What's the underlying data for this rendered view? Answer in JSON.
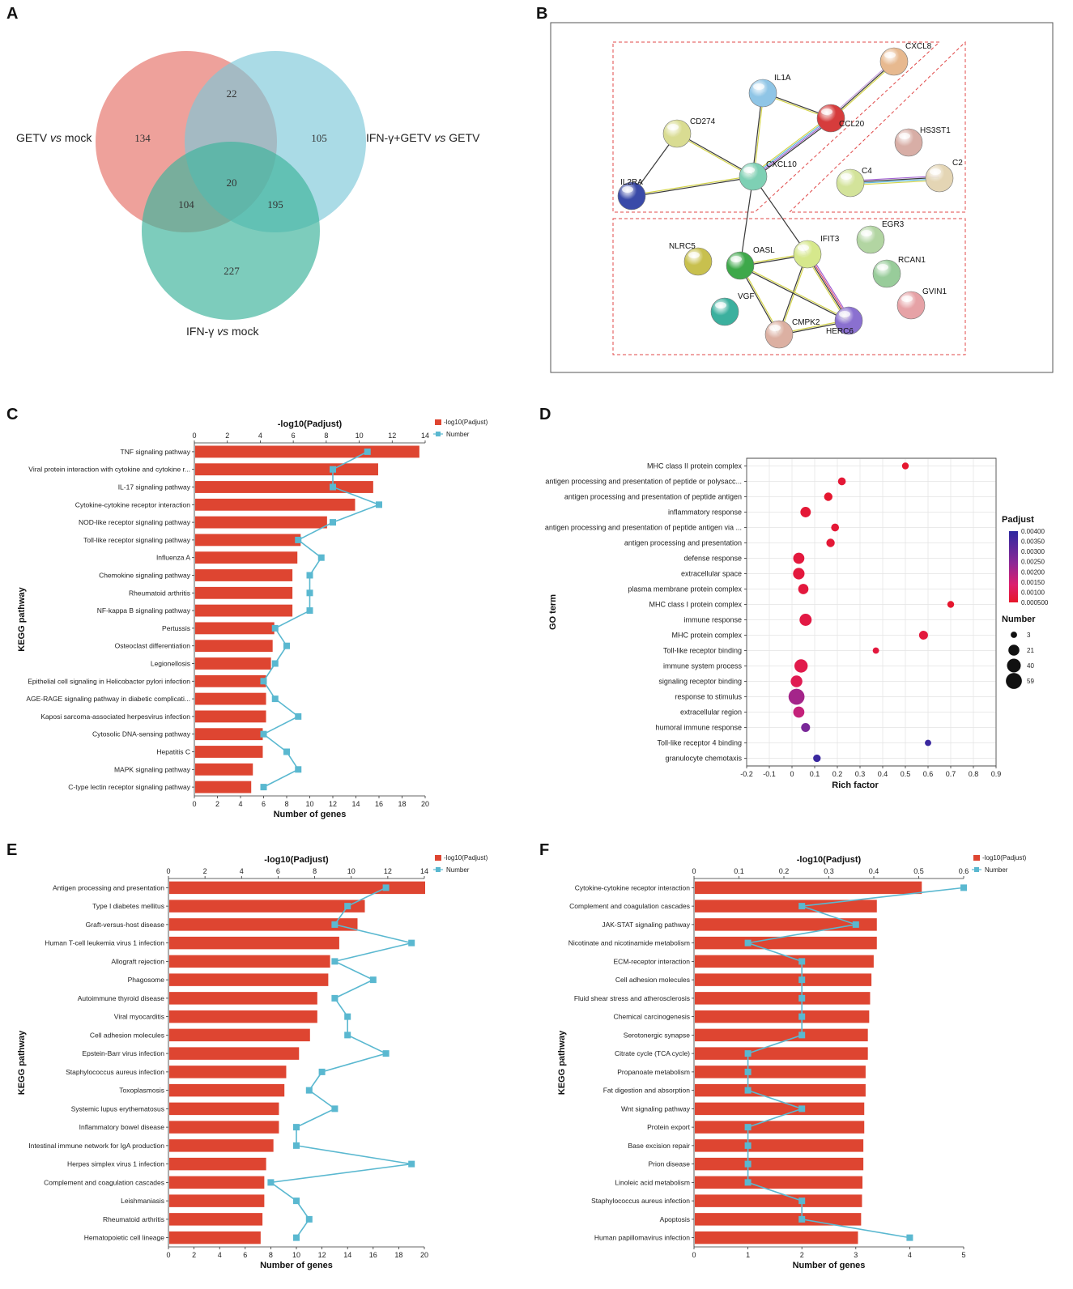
{
  "panels": {
    "A": "A",
    "B": "B",
    "C": "C",
    "D": "D",
    "E": "E",
    "F": "F"
  },
  "venn": {
    "sets": [
      {
        "label_parts": [
          "GETV ",
          "vs",
          " mock"
        ],
        "color": "#e8827a"
      },
      {
        "label_parts": [
          "IFN-γ+GETV ",
          "vs",
          " GETV"
        ],
        "color": "#7cc8d8"
      },
      {
        "label_parts": [
          "IFN-γ ",
          "vs",
          " mock"
        ],
        "color": "#3fb49c"
      }
    ],
    "counts": {
      "only_a": "134",
      "only_b": "105",
      "only_c": "227",
      "ab": "22",
      "ac": "104",
      "bc": "195",
      "abc": "20"
    }
  },
  "network": {
    "nodes": [
      {
        "id": "CXCL8",
        "color": "#e7b98f"
      },
      {
        "id": "IL1A",
        "color": "#8fc5e6"
      },
      {
        "id": "CCL20",
        "color": "#d63c3c"
      },
      {
        "id": "CD274",
        "color": "#d9dc92"
      },
      {
        "id": "HS3ST1",
        "color": "#d8aea6"
      },
      {
        "id": "CXCL10",
        "color": "#7ed0b4"
      },
      {
        "id": "C4",
        "color": "#d3e39a"
      },
      {
        "id": "C2",
        "color": "#e4d5b4"
      },
      {
        "id": "IL2RA",
        "color": "#3a4aa8"
      },
      {
        "id": "EGR3",
        "color": "#b2d5a2"
      },
      {
        "id": "IFIT3",
        "color": "#d6e88c"
      },
      {
        "id": "NLRC5",
        "color": "#c8c04e"
      },
      {
        "id": "OASL",
        "color": "#3ea84a"
      },
      {
        "id": "RCAN1",
        "color": "#98cc9a"
      },
      {
        "id": "VGF",
        "color": "#3bb09e"
      },
      {
        "id": "GVIN1",
        "color": "#e6a2a6"
      },
      {
        "id": "HERC6",
        "color": "#8a70d0"
      },
      {
        "id": "CMPK2",
        "color": "#dcb0a2"
      }
    ]
  },
  "chart_data": [
    {
      "panel": "C",
      "type": "bar",
      "title": "",
      "top_axis_label": "-log10(Padjust)",
      "xlabel": "Number of genes",
      "ylabel": "KEGG pathway",
      "top_axis_range": [
        0,
        14
      ],
      "top_ticks": [
        "0",
        "2",
        "4",
        "6",
        "8",
        "10",
        "12",
        "14"
      ],
      "bottom_axis_range": [
        0,
        20
      ],
      "bottom_ticks": [
        "0",
        "2",
        "4",
        "6",
        "8",
        "10",
        "12",
        "14",
        "16",
        "18",
        "20"
      ],
      "legend": [
        "-log10(Padjust)",
        "Number"
      ],
      "colors": {
        "bar": "#de4531",
        "line": "#5ab8d0"
      },
      "categories": [
        "TNF signaling pathway",
        "Viral protein interaction with cytokine and cytokine r...",
        "IL-17 signaling pathway",
        "Cytokine-cytokine receptor interaction",
        "NOD-like receptor signaling pathway",
        "Toll-like receptor signaling pathway",
        "Influenza A",
        "Chemokine signaling pathway",
        "Rheumatoid arthritis",
        "NF-kappa B signaling pathway",
        "Pertussis",
        "Osteoclast differentiation",
        "Legionellosis",
        "Epithelial cell signaling in Helicobacter pylori infection",
        "AGE-RAGE signaling pathway in diabetic complicati...",
        "Kaposi sarcoma-associated herpesvirus infection",
        "Cytosolic DNA-sensing pathway",
        "Hepatitis C",
        "MAPK signaling pathway",
        "C-type lectin receptor signaling pathway"
      ],
      "series": [
        {
          "name": "-log10(Padjust)",
          "values": [
            13.6,
            11.1,
            10.8,
            9.7,
            8.0,
            6.4,
            6.2,
            5.9,
            5.9,
            5.9,
            4.8,
            4.7,
            4.6,
            4.3,
            4.3,
            4.3,
            4.1,
            4.1,
            3.5,
            3.4
          ]
        },
        {
          "name": "Number",
          "values": [
            15,
            12,
            12,
            16,
            12,
            9,
            11,
            10,
            10,
            10,
            7,
            8,
            7,
            6,
            7,
            9,
            6,
            8,
            9,
            6
          ]
        }
      ]
    },
    {
      "panel": "D",
      "type": "scatter",
      "xlabel": "Rich factor",
      "ylabel": "GO term",
      "xlim": [
        -0.2,
        0.9
      ],
      "x_ticks": [
        "-0.2",
        "-0.1",
        "0",
        "0.1",
        "0.2",
        "0.3",
        "0.4",
        "0.5",
        "0.6",
        "0.7",
        "0.8",
        "0.9"
      ],
      "legend_color_title": "Padjust",
      "legend_color_ticks": [
        "0.00400",
        "0.00350",
        "0.00300",
        "0.00250",
        "0.00200",
        "0.00150",
        "0.00100",
        "0.000500"
      ],
      "legend_size_title": "Number",
      "legend_size_values": [
        "3",
        "21",
        "40",
        "59"
      ],
      "categories": [
        "MHC class II protein complex",
        "antigen processing and presentation of peptide or polysacc...",
        "antigen processing and presentation of peptide antigen",
        "inflammatory response",
        "antigen processing and presentation of peptide antigen via ...",
        "antigen processing and presentation",
        "defense response",
        "extracellular space",
        "plasma membrane protein complex",
        "MHC class I protein complex",
        "immune response",
        "MHC protein complex",
        "Toll-like receptor binding",
        "immune system process",
        "signaling receptor binding",
        "response to stimulus",
        "extracellular region",
        "humoral immune response",
        "Toll-like receptor 4 binding",
        "granulocyte chemotaxis"
      ],
      "rich_factor": [
        0.5,
        0.22,
        0.16,
        0.06,
        0.19,
        0.17,
        0.03,
        0.03,
        0.05,
        0.7,
        0.06,
        0.58,
        0.37,
        0.04,
        0.02,
        0.02,
        0.03,
        0.06,
        0.6,
        0.11
      ],
      "number": [
        4,
        7,
        9,
        18,
        7,
        9,
        22,
        24,
        17,
        4,
        28,
        11,
        3,
        36,
        25,
        59,
        22,
        11,
        3,
        6
      ],
      "padjust": [
        0.0006,
        0.0007,
        0.0006,
        0.0007,
        0.0007,
        0.0007,
        0.0008,
        0.0008,
        0.0008,
        0.0006,
        0.0009,
        0.0008,
        0.0008,
        0.001,
        0.0011,
        0.0022,
        0.0018,
        0.0028,
        0.0038,
        0.0038
      ]
    },
    {
      "panel": "E",
      "type": "bar",
      "top_axis_label": "-log10(Padjust)",
      "xlabel": "Number of genes",
      "ylabel": "KEGG pathway",
      "top_axis_range": [
        0,
        14
      ],
      "top_ticks": [
        "0",
        "2",
        "4",
        "6",
        "8",
        "10",
        "12",
        "14"
      ],
      "bottom_axis_range": [
        0,
        20
      ],
      "bottom_ticks": [
        "0",
        "2",
        "4",
        "6",
        "8",
        "10",
        "12",
        "14",
        "16",
        "18",
        "20"
      ],
      "legend": [
        "-log10(Padjust)",
        "Number"
      ],
      "colors": {
        "bar": "#de4531",
        "line": "#5ab8d0"
      },
      "categories": [
        "Antigen processing and presentation",
        "Type I diabetes mellitus",
        "Graft-versus-host disease",
        "Human T-cell leukemia virus 1 infection",
        "Allograft rejection",
        "Phagosome",
        "Autoimmune thyroid disease",
        "Viral myocarditis",
        "Cell adhesion molecules",
        "Epstein-Barr virus infection",
        "Staphylococcus aureus infection",
        "Toxoplasmosis",
        "Systemic lupus erythematosus",
        "Inflammatory bowel disease",
        "Intestinal immune network for IgA production",
        "Herpes simplex virus 1 infection",
        "Complement and coagulation cascades",
        "Leishmaniasis",
        "Rheumatoid arthritis",
        "Hematopoietic cell lineage"
      ],
      "series": [
        {
          "name": "-log10(Padjust)",
          "values": [
            14.0,
            10.7,
            10.3,
            9.3,
            8.8,
            8.7,
            8.1,
            8.1,
            7.7,
            7.1,
            6.4,
            6.3,
            6.0,
            6.0,
            5.7,
            5.3,
            5.2,
            5.2,
            5.1,
            5.0
          ]
        },
        {
          "name": "Number",
          "values": [
            17,
            14,
            13,
            19,
            13,
            16,
            13,
            14,
            14,
            17,
            12,
            11,
            13,
            10,
            10,
            19,
            8,
            10,
            11,
            10
          ]
        }
      ]
    },
    {
      "panel": "F",
      "type": "bar",
      "top_axis_label": "-log10(Padjust)",
      "xlabel": "Number of genes",
      "ylabel": "KEGG pathway",
      "top_axis_range": [
        0,
        0.6
      ],
      "top_ticks": [
        "0",
        "0.1",
        "0.2",
        "0.3",
        "0.4",
        "0.5",
        "0.6"
      ],
      "bottom_axis_range": [
        0,
        5
      ],
      "bottom_ticks": [
        "0",
        "1",
        "2",
        "3",
        "4",
        "5"
      ],
      "legend": [
        "-log10(Padjust)",
        "Number"
      ],
      "colors": {
        "bar": "#de4531",
        "line": "#5ab8d0"
      },
      "categories": [
        "Cytokine-cytokine receptor interaction",
        "Complement and coagulation cascades",
        "JAK-STAT signaling pathway",
        "Nicotinate and nicotinamide metabolism",
        "ECM-receptor interaction",
        "Cell adhesion molecules",
        "Fluid shear stress and atherosclerosis",
        "Chemical carcinogenesis",
        "Serotonergic synapse",
        "Citrate cycle (TCA cycle)",
        "Propanoate metabolism",
        "Fat digestion and absorption",
        "Wnt signaling pathway",
        "Protein export",
        "Base excision repair",
        "Prion disease",
        "Linoleic acid metabolism",
        "Staphylococcus aureus infection",
        "Apoptosis",
        "Human papillomavirus infection"
      ],
      "series": [
        {
          "name": "-log10(Padjust)",
          "values": [
            0.505,
            0.405,
            0.405,
            0.405,
            0.398,
            0.393,
            0.39,
            0.388,
            0.385,
            0.385,
            0.38,
            0.38,
            0.377,
            0.377,
            0.375,
            0.375,
            0.373,
            0.372,
            0.37,
            0.363
          ]
        },
        {
          "name": "Number",
          "values": [
            5,
            2,
            3,
            1,
            2,
            2,
            2,
            2,
            2,
            1,
            1,
            1,
            2,
            1,
            1,
            1,
            1,
            2,
            2,
            4
          ]
        }
      ]
    }
  ]
}
